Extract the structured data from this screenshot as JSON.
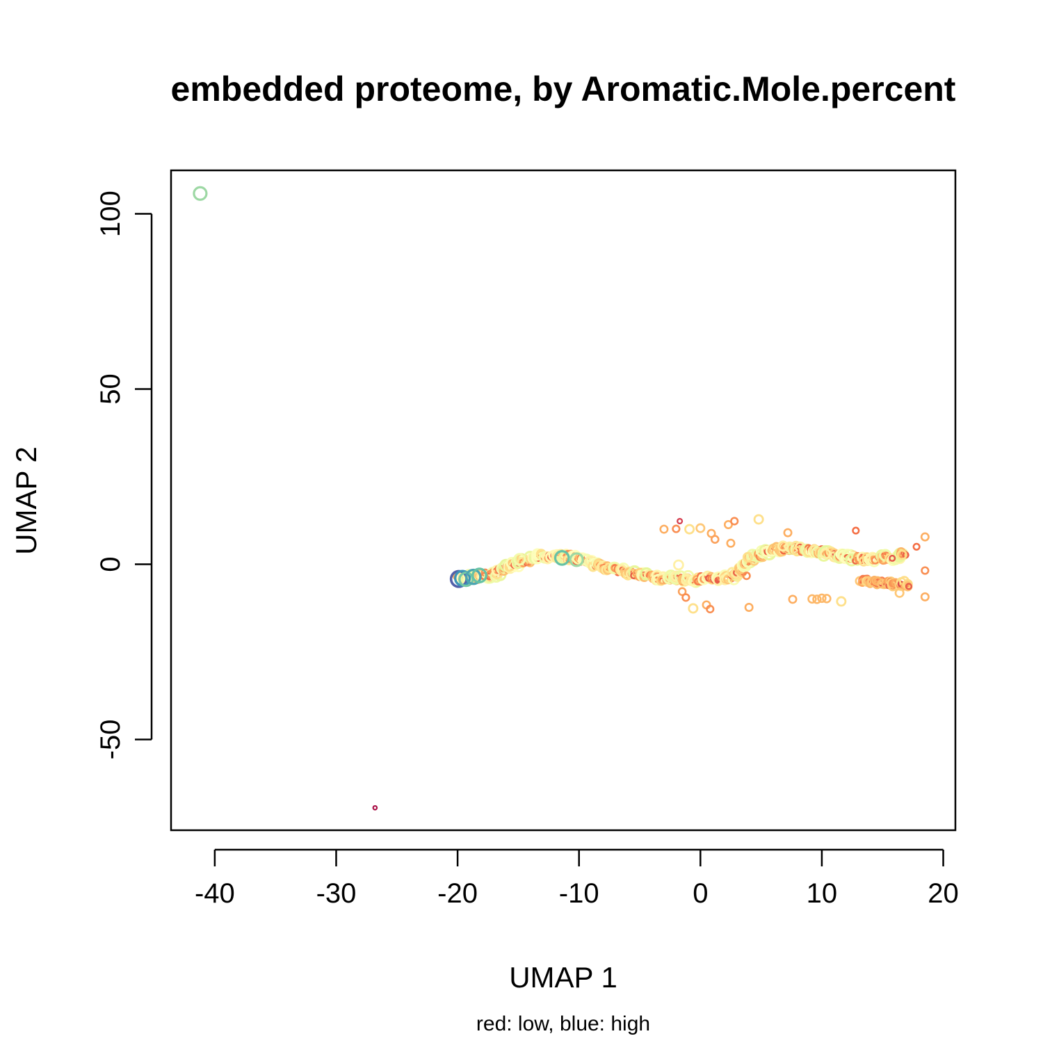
{
  "chart_data": {
    "type": "scatter",
    "title": "embedded proteome, by Aromatic.Mole.percent",
    "xlabel": "UMAP 1",
    "ylabel": "UMAP 2",
    "caption": "red: low, blue: high",
    "xlim": [
      -43.6,
      21
    ],
    "ylim": [
      -75.9,
      112.4
    ],
    "xticks": [
      -40,
      -30,
      -20,
      -10,
      0,
      10,
      20
    ],
    "yticks": [
      -50,
      0,
      50,
      100
    ],
    "xtick_labels": [
      "-40",
      "-30",
      "-20",
      "-10",
      "0",
      "10",
      "20"
    ],
    "ytick_labels": [
      "-50",
      "0",
      "50",
      "100"
    ],
    "grid": false,
    "legend": "none",
    "color_scale": {
      "low": "#9e0142",
      "high": "#5e4fa2"
    },
    "marker": "open circle",
    "curve_main": [
      [
        -19.8,
        -4.1
      ],
      [
        -17,
        -3
      ],
      [
        -15,
        0.5
      ],
      [
        -13,
        2.4
      ],
      [
        -11,
        2.3
      ],
      [
        -9,
        0.4
      ],
      [
        -7,
        -1.6
      ],
      [
        -5,
        -3.1
      ],
      [
        -3,
        -4
      ],
      [
        -1,
        -4.2
      ],
      [
        1,
        -4.1
      ],
      [
        2.7,
        -3.5
      ],
      [
        4,
        1
      ],
      [
        6,
        4.3
      ],
      [
        8,
        4.4
      ],
      [
        10,
        3.6
      ],
      [
        12,
        2
      ],
      [
        14,
        1.5
      ],
      [
        16,
        2
      ],
      [
        16.8,
        3
      ]
    ],
    "curve_lower": [
      [
        13.3,
        -4.6
      ],
      [
        15,
        -5.5
      ],
      [
        17,
        -5.6
      ]
    ],
    "points": [
      {
        "x": -41.2,
        "y": 105.8,
        "v": 0.72
      },
      {
        "x": -26.8,
        "y": -69.5,
        "v": 0.02
      },
      {
        "x": -19.9,
        "y": -4.2,
        "v": 0.97
      },
      {
        "x": -19.6,
        "y": -4.0,
        "v": 0.88
      },
      {
        "x": -19.3,
        "y": -4.3,
        "v": 0.78
      },
      {
        "x": -18.7,
        "y": -3.6,
        "v": 0.85
      },
      {
        "x": -18.2,
        "y": -3.2,
        "v": 0.8
      },
      {
        "x": -11.4,
        "y": 1.8,
        "v": 0.8
      },
      {
        "x": -10.2,
        "y": 1.3,
        "v": 0.72
      },
      {
        "x": -14.9,
        "y": 1.4,
        "v": 0.55
      },
      {
        "x": -1.8,
        "y": -0.2,
        "v": 0.45
      },
      {
        "x": 3.9,
        "y": 2.0,
        "v": 0.4
      },
      {
        "x": -3.0,
        "y": 10.0,
        "v": 0.3
      },
      {
        "x": -2.0,
        "y": 10.1,
        "v": 0.25
      },
      {
        "x": -1.7,
        "y": 12.3,
        "v": 0.1
      },
      {
        "x": -0.9,
        "y": 10.0,
        "v": 0.4
      },
      {
        "x": 0.0,
        "y": 10.3,
        "v": 0.35
      },
      {
        "x": 0.9,
        "y": 8.8,
        "v": 0.3
      },
      {
        "x": 1.2,
        "y": 7.1,
        "v": 0.28
      },
      {
        "x": 2.3,
        "y": 11.3,
        "v": 0.3
      },
      {
        "x": 2.8,
        "y": 12.3,
        "v": 0.25
      },
      {
        "x": 2.5,
        "y": 6.0,
        "v": 0.3
      },
      {
        "x": 4.8,
        "y": 12.8,
        "v": 0.4
      },
      {
        "x": 7.2,
        "y": 9.0,
        "v": 0.3
      },
      {
        "x": 12.8,
        "y": 9.6,
        "v": 0.2
      },
      {
        "x": 17.8,
        "y": 5.0,
        "v": 0.2
      },
      {
        "x": 18.5,
        "y": 7.8,
        "v": 0.3
      },
      {
        "x": 18.5,
        "y": -1.8,
        "v": 0.25
      },
      {
        "x": 18.5,
        "y": -9.3,
        "v": 0.3
      },
      {
        "x": 16.4,
        "y": -8.2,
        "v": 0.35
      },
      {
        "x": -1.5,
        "y": -7.8,
        "v": 0.28
      },
      {
        "x": -1.2,
        "y": -9.5,
        "v": 0.25
      },
      {
        "x": -0.6,
        "y": -12.6,
        "v": 0.4
      },
      {
        "x": 0.5,
        "y": -11.6,
        "v": 0.3
      },
      {
        "x": 0.8,
        "y": -12.8,
        "v": 0.25
      },
      {
        "x": 3.8,
        "y": -3.3,
        "v": 0.25
      },
      {
        "x": 4.0,
        "y": -12.3,
        "v": 0.3
      },
      {
        "x": 7.6,
        "y": -10.0,
        "v": 0.3
      },
      {
        "x": 9.2,
        "y": -9.9,
        "v": 0.32
      },
      {
        "x": 9.6,
        "y": -10.0,
        "v": 0.32
      },
      {
        "x": 10.0,
        "y": -9.7,
        "v": 0.32
      },
      {
        "x": 10.4,
        "y": -9.8,
        "v": 0.32
      },
      {
        "x": 11.6,
        "y": -10.6,
        "v": 0.4
      },
      {
        "x": 10.3,
        "y": 3.0,
        "v": 0.45
      },
      {
        "x": 6.8,
        "y": 5.2,
        "v": 0.45
      },
      {
        "x": 16.6,
        "y": 2.7,
        "v": 0.4
      },
      {
        "x": 15.8,
        "y": 1.7,
        "v": 0.15
      }
    ]
  }
}
